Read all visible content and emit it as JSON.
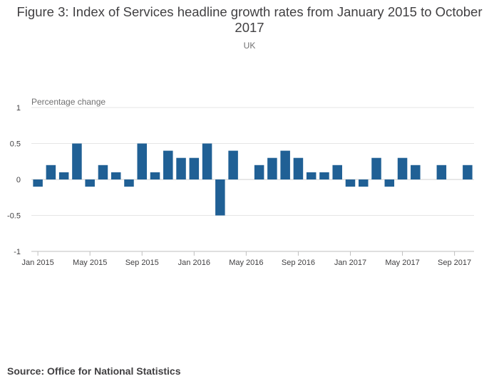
{
  "chart_data": {
    "type": "bar",
    "title": "Figure 3: Index of Services headline growth rates from January 2015 to October 2017",
    "subtitle": "UK",
    "ylabel": "Percentage change",
    "xlabel": "",
    "ylim": [
      -1,
      1
    ],
    "yticks": [
      1,
      0.5,
      0,
      -0.5,
      -1
    ],
    "ytick_labels": [
      "1",
      "0.5",
      "0",
      "-0.5",
      "-1"
    ],
    "xtick_labels": [
      "Jan 2015",
      "May 2015",
      "Sep 2015",
      "Jan 2016",
      "May 2016",
      "Sep 2016",
      "Jan 2017",
      "May 2017",
      "Sep 2017"
    ],
    "xtick_indices": [
      0,
      4,
      8,
      12,
      16,
      20,
      24,
      28,
      32
    ],
    "categories": [
      "Jan 2015",
      "Feb 2015",
      "Mar 2015",
      "Apr 2015",
      "May 2015",
      "Jun 2015",
      "Jul 2015",
      "Aug 2015",
      "Sep 2015",
      "Oct 2015",
      "Nov 2015",
      "Dec 2015",
      "Jan 2016",
      "Feb 2016",
      "Mar 2016",
      "Apr 2016",
      "May 2016",
      "Jun 2016",
      "Jul 2016",
      "Aug 2016",
      "Sep 2016",
      "Oct 2016",
      "Nov 2016",
      "Dec 2016",
      "Jan 2017",
      "Feb 2017",
      "Mar 2017",
      "Apr 2017",
      "May 2017",
      "Jun 2017",
      "Jul 2017",
      "Aug 2017",
      "Sep 2017",
      "Oct 2017"
    ],
    "values": [
      -0.1,
      0.2,
      0.1,
      0.5,
      -0.1,
      0.2,
      0.1,
      -0.1,
      0.5,
      0.1,
      0.4,
      0.3,
      0.3,
      0.5,
      -0.5,
      0.4,
      0.0,
      0.2,
      0.3,
      0.4,
      0.3,
      0.1,
      0.1,
      0.2,
      -0.1,
      -0.1,
      0.3,
      -0.1,
      0.3,
      0.2,
      0.0,
      0.2,
      0.0,
      0.2
    ],
    "series_color": "#206095",
    "grid": true
  },
  "source": {
    "text": "Source: Office for National Statistics"
  }
}
